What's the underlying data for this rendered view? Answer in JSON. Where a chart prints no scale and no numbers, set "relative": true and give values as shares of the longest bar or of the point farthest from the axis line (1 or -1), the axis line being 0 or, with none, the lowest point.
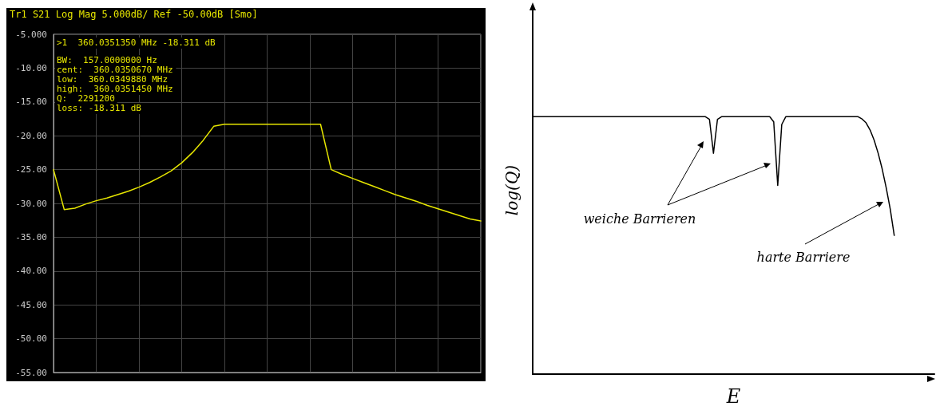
{
  "chart_data": [
    {
      "type": "line",
      "title": "Tr1 S21 Log Mag 5.000dB/ Ref -50.00dB [Smo]",
      "annotations": [
        ">1  360.0351350 MHz -18.311 dB",
        "BW:  157.0000000 Hz",
        "cent:  360.0350670 MHz",
        "low:  360.0349880 MHz",
        "high:  360.0351450 MHz",
        "Q:  2291200",
        "loss: -18.311 dB"
      ],
      "categories": [
        null,
        null,
        null,
        null,
        null,
        null,
        null,
        null,
        null,
        null,
        null,
        null,
        null,
        null,
        null,
        null,
        null,
        null,
        null,
        null,
        null,
        null,
        null,
        null,
        null,
        null,
        null,
        null,
        null,
        null,
        null,
        null,
        null,
        null,
        null,
        null,
        null,
        null,
        null,
        null,
        null
      ],
      "series": [
        {
          "color": "#e6e600",
          "values": [
            -25.0,
            -30.9,
            -30.7,
            -30.1,
            -29.6,
            -29.2,
            -28.7,
            -28.2,
            -27.6,
            -26.9,
            -26.1,
            -25.2,
            -24.0,
            -22.5,
            -20.7,
            -18.6,
            -18.3,
            -18.3,
            -18.3,
            -18.3,
            -18.3,
            -18.3,
            -18.3,
            -18.3,
            -18.3,
            -18.3,
            -25.0,
            -25.7,
            -26.3,
            -26.9,
            -27.5,
            -28.1,
            -28.7,
            -29.2,
            -29.7,
            -30.3,
            -30.8,
            -31.3,
            -31.8,
            -32.3,
            -32.6
          ]
        }
      ],
      "ylim": [
        -55,
        -5
      ],
      "yticks": [
        {
          "value": -55,
          "label": "-55.00"
        },
        {
          "value": -50,
          "label": "-50.00"
        },
        {
          "value": -45,
          "label": "-45.00"
        },
        {
          "value": -40,
          "label": "-40.00"
        },
        {
          "value": -35,
          "label": "-35.00"
        },
        {
          "value": -30,
          "label": "-30.00"
        },
        {
          "value": -25,
          "label": "-25.00"
        },
        {
          "value": -20,
          "label": "-20.00"
        },
        {
          "value": -15,
          "label": "-15.00"
        },
        {
          "value": -10,
          "label": "-10.00"
        },
        {
          "value": -5,
          "label": "-5.000"
        }
      ],
      "grid": true,
      "tick_labels": "y"
    },
    {
      "type": "line",
      "xlabel": "E",
      "ylabel": "log(Q)",
      "relative": true,
      "tick_labels": false,
      "annotations": [
        "weiche Barrieren",
        "harte Barriere"
      ],
      "categories": [
        null,
        null,
        null,
        null,
        null,
        null,
        null,
        null,
        null,
        null,
        null,
        null,
        null,
        null,
        null,
        null,
        null,
        null,
        null,
        null,
        null,
        null,
        null,
        null,
        null,
        null,
        null,
        null,
        null,
        null,
        null,
        null,
        null,
        null,
        null,
        null,
        null,
        null,
        null,
        null,
        null,
        null,
        null,
        null,
        null,
        null,
        null,
        null,
        null,
        null,
        null,
        null,
        null,
        null,
        null,
        null,
        null,
        null,
        null,
        null,
        null,
        null,
        null,
        null,
        null,
        null,
        null,
        null,
        null,
        null,
        null,
        null,
        null,
        null,
        null,
        null,
        null,
        null,
        null,
        null,
        null,
        null,
        null,
        null,
        null,
        null,
        null,
        null,
        null,
        null,
        null,
        null,
        null,
        null,
        null,
        null,
        null,
        null,
        null,
        null,
        null
      ],
      "series": [
        {
          "color": "#000000",
          "values": [
            1,
            1,
            1,
            1,
            1,
            1,
            1,
            1,
            1,
            1,
            1,
            1,
            1,
            1,
            1,
            1,
            1,
            1,
            1,
            1,
            1,
            1,
            1,
            1,
            1,
            1,
            1,
            1,
            1,
            1,
            1,
            1,
            1,
            1,
            1,
            1,
            1,
            1,
            1,
            1,
            1,
            1,
            1,
            1,
            0.99,
            0.858,
            0.99,
            1,
            1,
            1,
            1,
            1,
            1,
            1,
            1,
            1,
            1,
            1,
            1,
            1,
            0.98,
            0.733,
            0.97,
            1,
            1,
            1,
            1,
            1,
            1,
            1,
            1,
            1,
            1,
            1,
            1,
            1,
            1,
            1,
            1,
            1,
            1,
            1,
            0.991,
            0.976,
            0.948,
            0.909,
            0.858,
            0.797,
            0.724,
            0.642,
            0.539,
            null,
            null,
            null,
            null,
            null,
            null,
            null,
            null,
            null,
            null
          ]
        }
      ]
    }
  ]
}
